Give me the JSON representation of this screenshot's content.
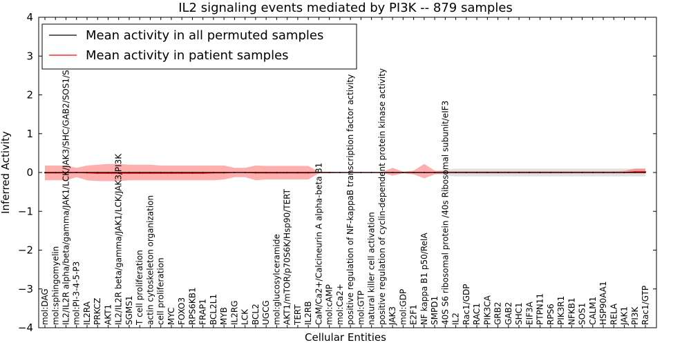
{
  "chart_data": {
    "type": "line",
    "title": "IL2 signaling events mediated by PI3K -- 879 samples",
    "xlabel": "Cellular Entities",
    "ylabel": "Inferred Activity",
    "ylim": [
      -4,
      4
    ],
    "yticks": [
      -4,
      -3,
      -2,
      -1,
      0,
      1,
      2,
      3,
      4
    ],
    "ytick_labels": [
      "−4",
      "−3",
      "−2",
      "−1",
      "0",
      "1",
      "2",
      "3",
      "4"
    ],
    "legend_position": "top-left",
    "categories": [
      "mol:DAG",
      "mol:sphingomyelin",
      "IL2/IL2R alpha/beta/gamma/JAK1/LCK/JAK3/SHC/GAB2/SOS1/SHP2",
      "mol:PI-3-4-5-P3",
      "IL2RA",
      "PRKCZ",
      "AKT1",
      "IL2/IL2R beta/gamma/JAK1/LCK/JAK3/PI3K",
      "SGMS1",
      "T cell proliferation",
      "actin cytoskeleton organization",
      "cell proliferation",
      "MYC",
      "FOXO3",
      "RPS6KB1",
      "FRAP1",
      "BCL2L1",
      "MYB",
      "IL2RG",
      "LCK",
      "BCL2",
      "UGCG",
      "mol:glucosylceramide",
      "AKT1/mTOR/p70S6K/Hsp90/TERT",
      "TERT",
      "IL2RB",
      "CaM/Ca2+/Calcineurin A alpha-beta B1",
      "mol:cAMP",
      "mol:Ca2+",
      "positive regulation of NF-kappaB transcription factor activity",
      "mol:GTP",
      "natural killer cell activation",
      "positive regulation of cyclin-dependent protein kinase activity",
      "JAK3",
      "mol:GDP",
      "E2F1",
      "NF kappa B1 p50/RelA",
      "SMPD1",
      "40S S6 ribosomal protein /40s Ribosomal subunit/eIF3",
      "IL2",
      "Rac1/GDP",
      "RAC1",
      "PIK3CA",
      "GRB2",
      "GAB2",
      "SHC1",
      "EIF3A",
      "PTPN11",
      "RPS6",
      "PIK3R1",
      "NFKB1",
      "SOS1",
      "CALM1",
      "HSP90AA1",
      "RELA",
      "JAK1",
      "PI3K",
      "Rac1/GTP"
    ],
    "series": [
      {
        "name": "Mean activity in all permuted samples",
        "color": "#000000",
        "values": [
          0,
          0,
          0,
          0,
          0,
          0,
          0,
          0,
          0,
          0,
          0,
          0,
          0,
          0,
          0,
          0,
          0,
          0,
          0,
          0,
          0,
          0,
          0,
          0,
          0,
          0,
          0,
          0,
          0,
          0,
          0,
          0,
          0,
          0,
          0,
          0,
          0,
          0,
          0,
          0,
          0,
          0,
          0,
          0,
          0,
          0,
          0,
          0,
          0,
          0,
          0,
          0,
          0,
          0,
          0,
          0,
          0,
          0
        ],
        "band_lower": [
          -0.02,
          -0.02,
          -0.02,
          -0.02,
          -0.02,
          -0.02,
          -0.02,
          -0.02,
          -0.02,
          -0.02,
          -0.02,
          -0.02,
          -0.02,
          -0.02,
          -0.02,
          -0.02,
          -0.02,
          -0.02,
          -0.02,
          -0.02,
          -0.02,
          -0.02,
          -0.02,
          -0.02,
          -0.02,
          -0.02,
          -0.02,
          -0.02,
          -0.02,
          -0.02,
          -0.02,
          -0.02,
          -0.02,
          -0.02,
          -0.02,
          -0.02,
          -0.02,
          -0.02,
          -0.08,
          -0.1,
          -0.1,
          -0.1,
          -0.1,
          -0.1,
          -0.1,
          -0.1,
          -0.1,
          -0.1,
          -0.1,
          -0.1,
          -0.1,
          -0.1,
          -0.1,
          -0.1,
          -0.1,
          -0.1,
          -0.1,
          -0.1
        ],
        "band_upper": [
          0.02,
          0.02,
          0.02,
          0.02,
          0.02,
          0.02,
          0.02,
          0.02,
          0.02,
          0.02,
          0.02,
          0.02,
          0.02,
          0.02,
          0.02,
          0.02,
          0.02,
          0.02,
          0.02,
          0.02,
          0.02,
          0.02,
          0.02,
          0.02,
          0.02,
          0.02,
          0.02,
          0.02,
          0.02,
          0.02,
          0.02,
          0.02,
          0.02,
          0.02,
          0.02,
          0.02,
          0.02,
          0.02,
          0.08,
          0.1,
          0.1,
          0.1,
          0.1,
          0.1,
          0.1,
          0.1,
          0.1,
          0.1,
          0.1,
          0.1,
          0.1,
          0.1,
          0.1,
          0.1,
          0.1,
          0.1,
          0.1,
          0.1
        ]
      },
      {
        "name": "Mean activity in patient samples",
        "color": "#ff0000",
        "values": [
          -0.01,
          -0.01,
          -0.01,
          0,
          -0.01,
          -0.02,
          -0.02,
          -0.02,
          -0.02,
          -0.02,
          -0.02,
          -0.02,
          -0.02,
          -0.02,
          -0.02,
          -0.02,
          -0.01,
          -0.01,
          0,
          0,
          -0.01,
          -0.01,
          -0.01,
          -0.01,
          -0.01,
          -0.01,
          0,
          0,
          0,
          0,
          0,
          0,
          0,
          0,
          0,
          0,
          0,
          0,
          0,
          0,
          0,
          0,
          0,
          0,
          0,
          0,
          0,
          0,
          0,
          0,
          0,
          0,
          0,
          0,
          0,
          0,
          0.02,
          0.02
        ],
        "band_lower": [
          -0.2,
          -0.2,
          -0.2,
          -0.12,
          -0.2,
          -0.22,
          -0.22,
          -0.22,
          -0.2,
          -0.2,
          -0.2,
          -0.2,
          -0.2,
          -0.2,
          -0.2,
          -0.2,
          -0.2,
          -0.18,
          -0.12,
          -0.12,
          -0.2,
          -0.18,
          -0.18,
          -0.18,
          -0.18,
          -0.18,
          -0.02,
          -0.02,
          -0.01,
          -0.01,
          -0.01,
          -0.01,
          -0.01,
          -0.08,
          -0.02,
          -0.05,
          -0.15,
          -0.05,
          -0.02,
          -0.02,
          -0.02,
          -0.02,
          -0.02,
          -0.02,
          -0.02,
          -0.02,
          -0.02,
          -0.02,
          -0.02,
          -0.02,
          -0.02,
          -0.02,
          -0.02,
          -0.02,
          -0.02,
          -0.02,
          -0.02,
          -0.02
        ],
        "band_upper": [
          0.18,
          0.18,
          0.18,
          0.12,
          0.18,
          0.2,
          0.22,
          0.22,
          0.2,
          0.2,
          0.2,
          0.18,
          0.18,
          0.18,
          0.18,
          0.18,
          0.18,
          0.18,
          0.12,
          0.12,
          0.18,
          0.17,
          0.17,
          0.17,
          0.17,
          0.17,
          0.02,
          0.02,
          0.01,
          0.01,
          0.01,
          0.01,
          0.01,
          0.12,
          0.02,
          0.05,
          0.22,
          0.05,
          0.03,
          0.03,
          0.03,
          0.03,
          0.03,
          0.03,
          0.03,
          0.03,
          0.03,
          0.03,
          0.03,
          0.03,
          0.03,
          0.03,
          0.03,
          0.03,
          0.03,
          0.04,
          0.1,
          0.1
        ]
      }
    ]
  }
}
